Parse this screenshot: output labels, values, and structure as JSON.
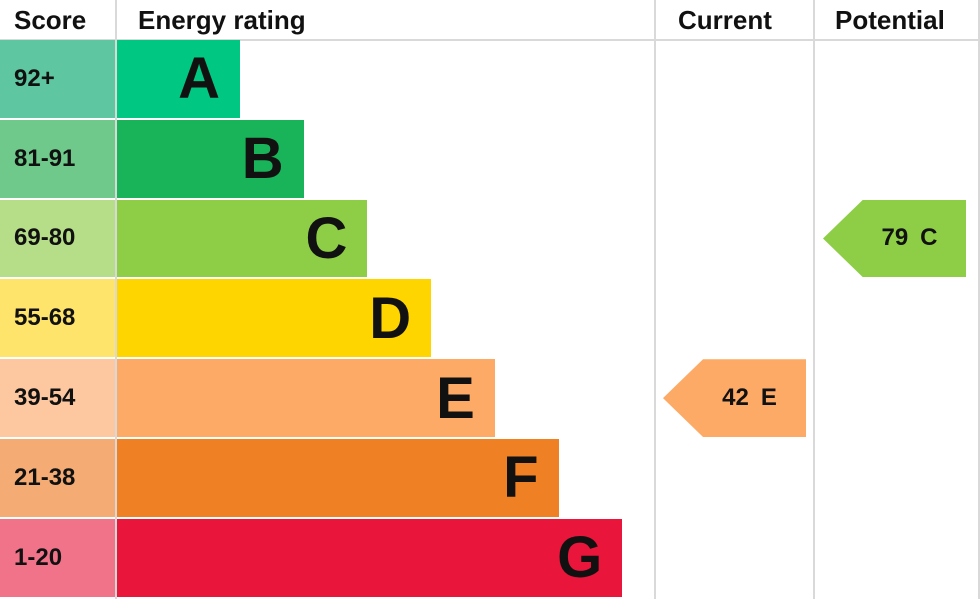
{
  "chart_data": {
    "type": "bar",
    "headers": {
      "score": "Score",
      "rating": "Energy rating",
      "current": "Current",
      "potential": "Potential"
    },
    "bands": [
      {
        "letter": "A",
        "range": "92+",
        "color": "#00c781",
        "score_color": "#5ec7a2"
      },
      {
        "letter": "B",
        "range": "81-91",
        "color": "#19b459",
        "score_color": "#6ec98a"
      },
      {
        "letter": "C",
        "range": "69-80",
        "color": "#8dce46",
        "score_color": "#b6dd88"
      },
      {
        "letter": "D",
        "range": "55-68",
        "color": "#ffd500",
        "score_color": "#ffe46b"
      },
      {
        "letter": "E",
        "range": "39-54",
        "color": "#fcaa65",
        "score_color": "#fdc8a0"
      },
      {
        "letter": "F",
        "range": "21-38",
        "color": "#ef8023",
        "score_color": "#f4ab74"
      },
      {
        "letter": "G",
        "range": "1-20",
        "color": "#e9153b",
        "score_color": "#f0738a"
      }
    ],
    "current": {
      "value": "42",
      "letter": "E",
      "color": "#fcaa65"
    },
    "potential": {
      "value": "79",
      "letter": "C",
      "color": "#8dce46"
    }
  }
}
